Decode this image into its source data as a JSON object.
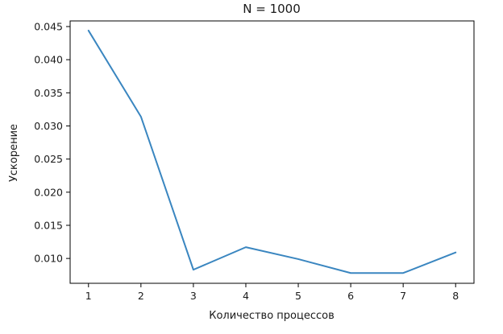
{
  "chart_data": {
    "type": "line",
    "title": "N = 1000",
    "xlabel": "Количество процессов",
    "ylabel": "Ускорение",
    "x": [
      1,
      2,
      3,
      4,
      5,
      6,
      7,
      8
    ],
    "series": [
      {
        "values": [
          0.0444,
          0.0314,
          0.0083,
          0.0117,
          0.0099,
          0.0078,
          0.0078,
          0.0109
        ],
        "color": "#3a86c0"
      }
    ],
    "xlim": [
      0.65,
      8.35
    ],
    "ylim": [
      0.00625,
      0.04585
    ],
    "x_ticks": [
      1,
      2,
      3,
      4,
      5,
      6,
      7,
      8
    ],
    "x_tick_labels": [
      "1",
      "2",
      "3",
      "4",
      "5",
      "6",
      "7",
      "8"
    ],
    "y_ticks": [
      0.01,
      0.015,
      0.02,
      0.025,
      0.03,
      0.035,
      0.04,
      0.045
    ],
    "y_tick_labels": [
      "0.010",
      "0.015",
      "0.020",
      "0.025",
      "0.030",
      "0.035",
      "0.040",
      "0.045"
    ],
    "grid": false,
    "legend": "none"
  }
}
